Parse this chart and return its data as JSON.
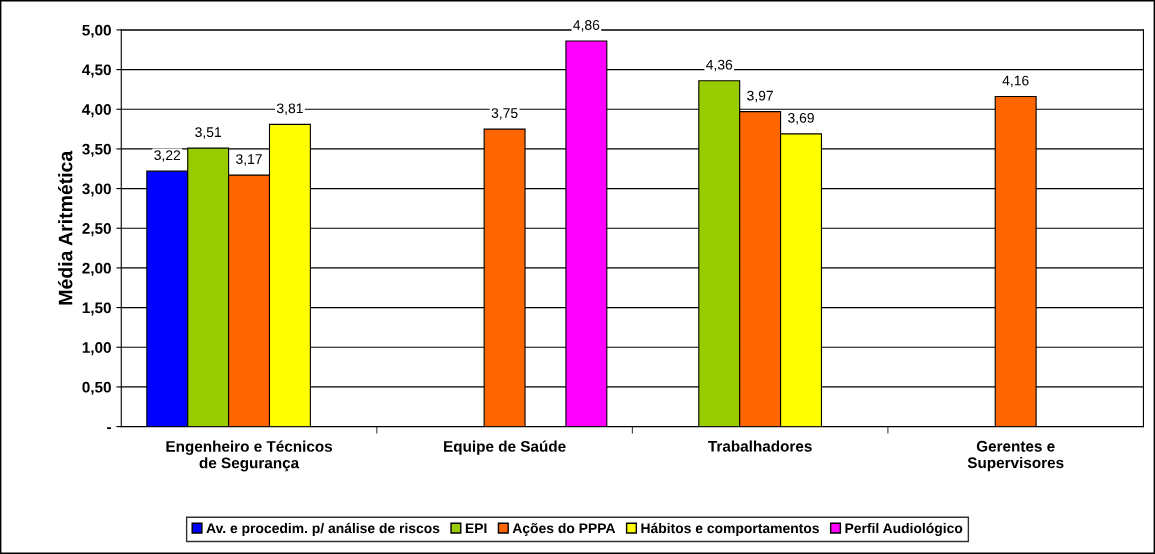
{
  "chart_data": {
    "type": "bar",
    "ylabel": "Média Aritmética",
    "categories": [
      "Engenheiro e Técnicos\nde Segurança",
      "Equipe de Saúde",
      "Trabalhadores",
      "Gerentes e\nSupervisores"
    ],
    "series": [
      {
        "name": "Av. e procedim. p/ análise de riscos",
        "color": "#0000ff",
        "values": [
          3.22,
          null,
          null,
          null
        ],
        "value_labels": [
          "3,22",
          null,
          null,
          null
        ]
      },
      {
        "name": "EPI",
        "color": "#99cc00",
        "values": [
          3.51,
          null,
          4.36,
          null
        ],
        "value_labels": [
          "3,51",
          null,
          "4,36",
          null
        ]
      },
      {
        "name": "Ações do PPPA",
        "color": "#ff6600",
        "values": [
          3.17,
          3.75,
          3.97,
          4.16
        ],
        "value_labels": [
          "3,17",
          "3,75",
          "3,97",
          "4,16"
        ]
      },
      {
        "name": "Hábitos e comportamentos",
        "color": "#ffff00",
        "values": [
          3.81,
          null,
          3.69,
          null
        ],
        "value_labels": [
          "3,81",
          null,
          "3,69",
          null
        ]
      },
      {
        "name": "Perfil Audiológico",
        "color": "#ff00ff",
        "values": [
          null,
          4.86,
          null,
          null
        ],
        "value_labels": [
          null,
          "4,86",
          null,
          null
        ]
      }
    ],
    "ylim": [
      0,
      5
    ],
    "yticks": [
      {
        "value": 0,
        "label": "-"
      },
      {
        "value": 0.5,
        "label": "0,50"
      },
      {
        "value": 1,
        "label": "1,00"
      },
      {
        "value": 1.5,
        "label": "1,50"
      },
      {
        "value": 2,
        "label": "2,00"
      },
      {
        "value": 2.5,
        "label": "2,50"
      },
      {
        "value": 3,
        "label": "3,00"
      },
      {
        "value": 3.5,
        "label": "3,50"
      },
      {
        "value": 4,
        "label": "4,00"
      },
      {
        "value": 4.5,
        "label": "4,50"
      },
      {
        "value": 5,
        "label": "5,00"
      }
    ],
    "grid": "y",
    "legend": "bottom"
  }
}
